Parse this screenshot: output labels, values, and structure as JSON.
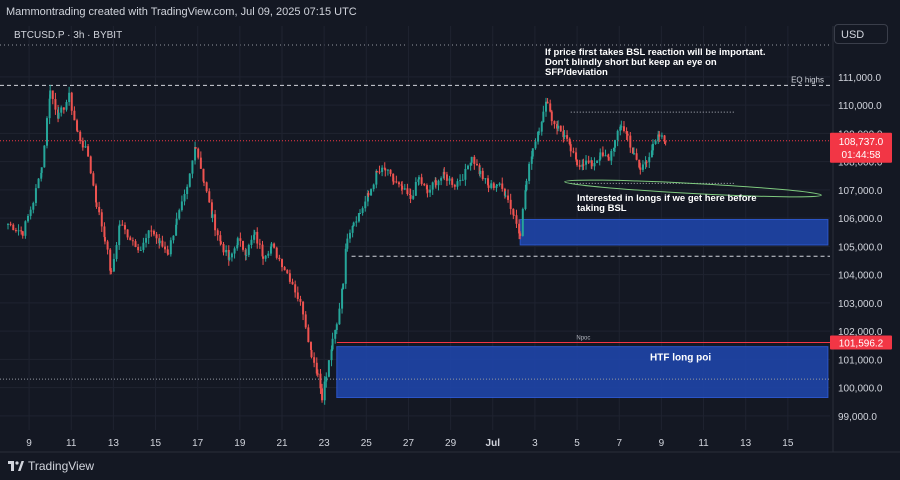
{
  "header": {
    "caption": "Mammontrading created with TradingView.com, Jul 09, 2025 07:15 UTC"
  },
  "symbol": {
    "label": "BTCUSD.P · 3h · BYBIT"
  },
  "currency": {
    "label": "USD"
  },
  "footer": {
    "brand": "TradingView"
  },
  "colors": {
    "bg": "#141823",
    "up": "#26a69a",
    "down": "#ef5350",
    "zone": "#1e44a6",
    "grid": "#1f2330",
    "last_price": "#f23645"
  },
  "chart_data": {
    "type": "candlestick",
    "title": "",
    "ylim": [
      98500,
      112800
    ],
    "yticks": [
      99000,
      100000,
      101000,
      102000,
      103000,
      104000,
      105000,
      106000,
      107000,
      108000,
      109000,
      110000,
      111000
    ],
    "ytick_labels": [
      "99,000.0",
      "100,000.0",
      "101,000.0",
      "102,000.0",
      "103,000.0",
      "104,000.0",
      "105,000.0",
      "106,000.0",
      "107,000.0",
      "108,000.0",
      "109,000.0",
      "110,000.0",
      "111,000.0"
    ],
    "x_domain_days": [
      8.0,
      47.0
    ],
    "xticks": [
      {
        "day": 9,
        "label": "9"
      },
      {
        "day": 11,
        "label": "11"
      },
      {
        "day": 13,
        "label": "13"
      },
      {
        "day": 15,
        "label": "15"
      },
      {
        "day": 17,
        "label": "17"
      },
      {
        "day": 19,
        "label": "19"
      },
      {
        "day": 21,
        "label": "21"
      },
      {
        "day": 23,
        "label": "23"
      },
      {
        "day": 25,
        "label": "25"
      },
      {
        "day": 27,
        "label": "27"
      },
      {
        "day": 29,
        "label": "29"
      },
      {
        "day": 31,
        "label": "Jul"
      },
      {
        "day": 33,
        "label": "3"
      },
      {
        "day": 35,
        "label": "5"
      },
      {
        "day": 37,
        "label": "7"
      },
      {
        "day": 39,
        "label": "9"
      },
      {
        "day": 41,
        "label": "11"
      },
      {
        "day": 43,
        "label": "13"
      },
      {
        "day": 45,
        "label": "15"
      }
    ],
    "close_path": [
      [
        8.0,
        105800
      ],
      [
        8.7,
        105500
      ],
      [
        9.2,
        106600
      ],
      [
        9.6,
        107800
      ],
      [
        10.0,
        110500
      ],
      [
        10.4,
        109600
      ],
      [
        10.9,
        110300
      ],
      [
        11.3,
        109000
      ],
      [
        11.8,
        108200
      ],
      [
        12.2,
        106500
      ],
      [
        12.6,
        105300
      ],
      [
        12.9,
        104000
      ],
      [
        13.3,
        105800
      ],
      [
        13.8,
        105300
      ],
      [
        14.3,
        104900
      ],
      [
        14.8,
        105600
      ],
      [
        15.2,
        105100
      ],
      [
        15.6,
        104800
      ],
      [
        16.0,
        105900
      ],
      [
        16.5,
        107000
      ],
      [
        16.9,
        108600
      ],
      [
        17.3,
        107300
      ],
      [
        17.7,
        106000
      ],
      [
        18.1,
        105100
      ],
      [
        18.5,
        104500
      ],
      [
        18.9,
        105200
      ],
      [
        19.3,
        104800
      ],
      [
        19.7,
        105400
      ],
      [
        20.1,
        104700
      ],
      [
        20.5,
        105000
      ],
      [
        21.0,
        104400
      ],
      [
        21.5,
        103700
      ],
      [
        22.0,
        102700
      ],
      [
        22.4,
        101200
      ],
      [
        22.7,
        100500
      ],
      [
        22.9,
        99700
      ],
      [
        23.1,
        100400
      ],
      [
        23.4,
        101600
      ],
      [
        23.6,
        102200
      ],
      [
        23.9,
        103800
      ],
      [
        24.1,
        105400
      ],
      [
        24.4,
        105900
      ],
      [
        24.7,
        106200
      ],
      [
        25.1,
        106800
      ],
      [
        25.5,
        107600
      ],
      [
        25.9,
        107700
      ],
      [
        26.3,
        107300
      ],
      [
        26.7,
        107000
      ],
      [
        27.1,
        106700
      ],
      [
        27.5,
        107400
      ],
      [
        27.9,
        106900
      ],
      [
        28.3,
        107300
      ],
      [
        28.7,
        107500
      ],
      [
        29.2,
        107200
      ],
      [
        29.7,
        107600
      ],
      [
        30.0,
        108200
      ],
      [
        30.4,
        107600
      ],
      [
        30.8,
        107100
      ],
      [
        31.2,
        107200
      ],
      [
        31.6,
        106900
      ],
      [
        32.0,
        106100
      ],
      [
        32.3,
        105500
      ],
      [
        32.6,
        107300
      ],
      [
        32.9,
        108500
      ],
      [
        33.2,
        109200
      ],
      [
        33.4,
        109700
      ],
      [
        33.6,
        110200
      ],
      [
        33.8,
        109500
      ],
      [
        34.1,
        109200
      ],
      [
        34.4,
        108900
      ],
      [
        34.7,
        108400
      ],
      [
        35.0,
        107900
      ],
      [
        35.3,
        108000
      ],
      [
        35.7,
        107900
      ],
      [
        36.1,
        108200
      ],
      [
        36.5,
        108100
      ],
      [
        36.8,
        108700
      ],
      [
        37.1,
        109300
      ],
      [
        37.4,
        108900
      ],
      [
        37.7,
        108200
      ],
      [
        38.0,
        107700
      ],
      [
        38.3,
        108100
      ],
      [
        38.6,
        108500
      ],
      [
        38.9,
        108900
      ],
      [
        39.2,
        108700
      ]
    ],
    "last_price": {
      "value": 108737,
      "label": "108,737.0",
      "countdown": "01:44:58"
    },
    "level_lines": [
      {
        "name": "eq-highs",
        "value": 110700,
        "label": "EQ highs",
        "style": "dashed",
        "color": "#d1d4dc"
      },
      {
        "name": "eq-highs-short",
        "value": 109750,
        "label": "",
        "style": "dotted",
        "color": "#b2b5be",
        "from_day": 34.7,
        "to_day": 42.5
      },
      {
        "name": "bsl",
        "value": 107230,
        "label": "",
        "style": "dotted",
        "color": "#b2b5be",
        "from_day": 34.7,
        "to_day": 42.5
      },
      {
        "name": "mid-dash",
        "value": 104650,
        "label": "",
        "style": "dashed",
        "color": "#d1d4dc",
        "from_day": 24.3
      },
      {
        "name": "lower-dotted",
        "value": 100300,
        "label": "",
        "style": "dotted",
        "color": "#9598a1"
      },
      {
        "name": "npoc",
        "value": 101596.2,
        "label": "Npoc",
        "style": "solid",
        "color": "#f23645",
        "from_day": 23.6,
        "price_label": "101,596.2"
      }
    ],
    "zones": [
      {
        "name": "ltf-long-zone",
        "from_day": 32.3,
        "to_day": 46.9,
        "y_low": 105050,
        "y_high": 105950,
        "label": ""
      },
      {
        "name": "htf-long-poi",
        "from_day": 23.6,
        "to_day": 46.9,
        "y_low": 99650,
        "y_high": 101450,
        "label": "HTF long poi"
      }
    ],
    "annotations": [
      {
        "name": "bsl-note",
        "lines": [
          "If price first takes BSL reaction will be important.",
          "Don't blindly short but keep an eye on",
          "SFP/deviation"
        ]
      },
      {
        "name": "longs-note",
        "lines": [
          "Interested in longs if we get here before",
          "taking BSL"
        ]
      }
    ]
  }
}
